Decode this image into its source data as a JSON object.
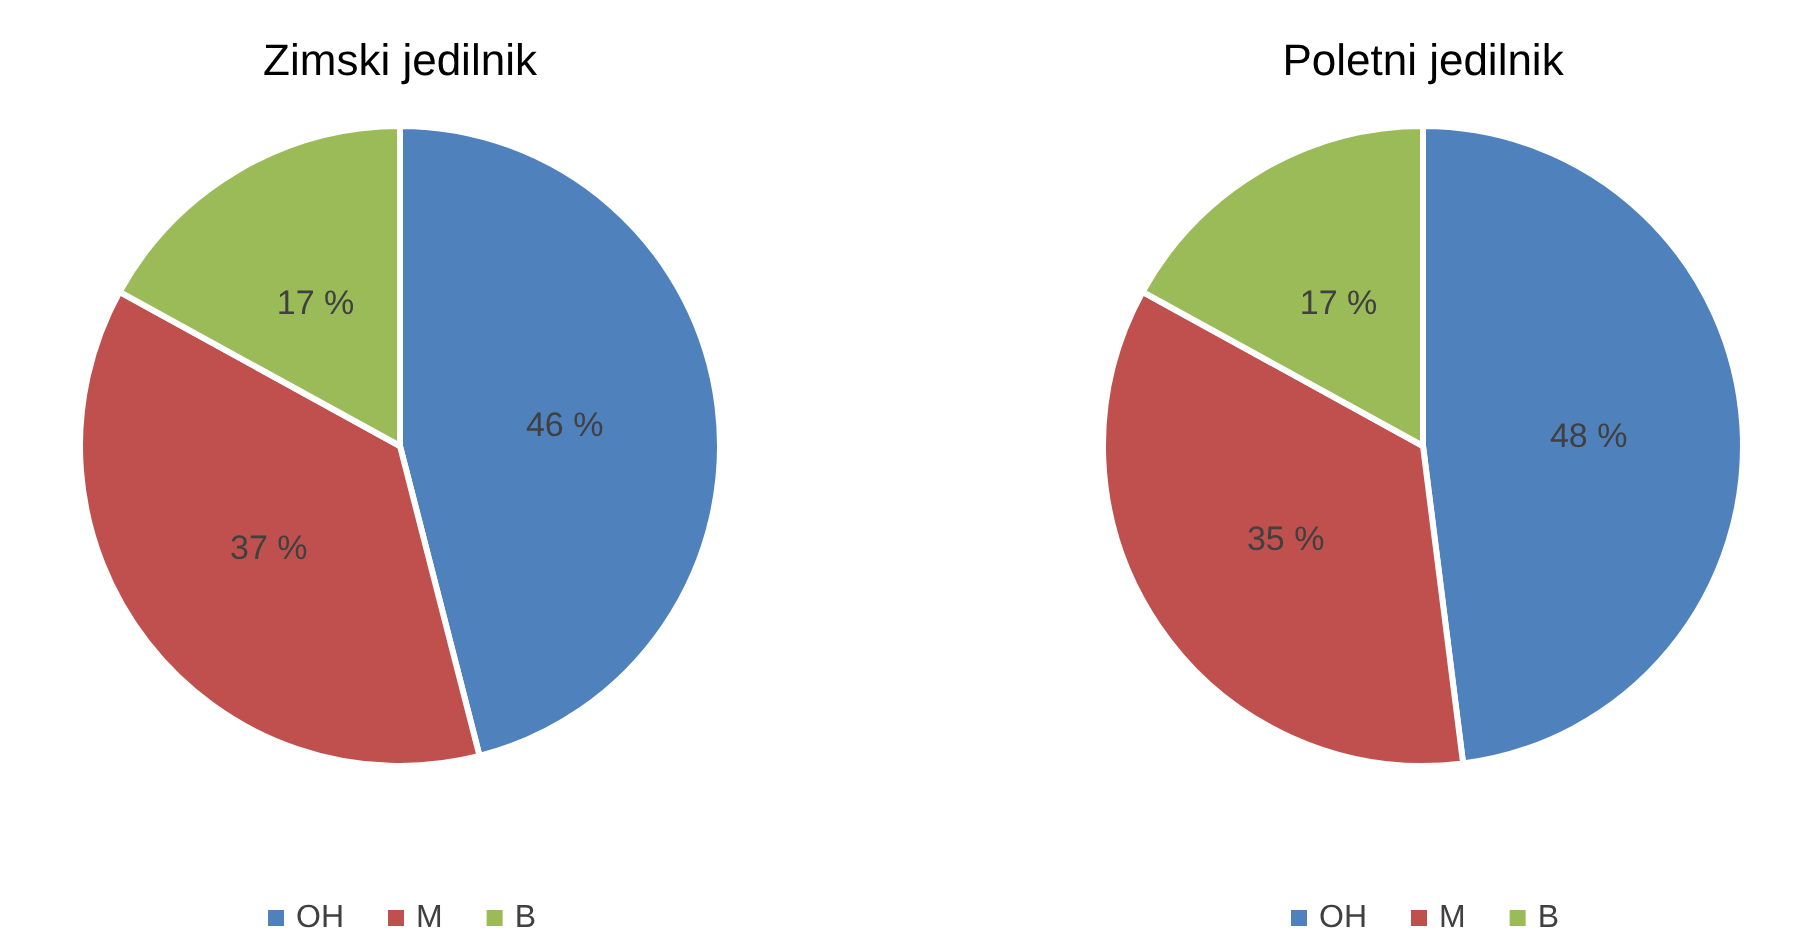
{
  "chart_data": [
    {
      "type": "pie",
      "title": "Zimski jedilnik",
      "categories": [
        "OH",
        "M",
        "B"
      ],
      "values": [
        46,
        37,
        17
      ],
      "colors": [
        "#4f81bd",
        "#c0504d",
        "#9bbb59"
      ],
      "value_labels": [
        "46 %",
        "37 %",
        "17 %"
      ],
      "legend": "bottom"
    },
    {
      "type": "pie",
      "title": "Poletni jedilnik",
      "categories": [
        "OH",
        "M",
        "B"
      ],
      "values": [
        48,
        35,
        17
      ],
      "colors": [
        "#4f81bd",
        "#c0504d",
        "#9bbb59"
      ],
      "value_labels": [
        "48 %",
        "35 %",
        "17 %"
      ],
      "legend": "bottom"
    }
  ]
}
